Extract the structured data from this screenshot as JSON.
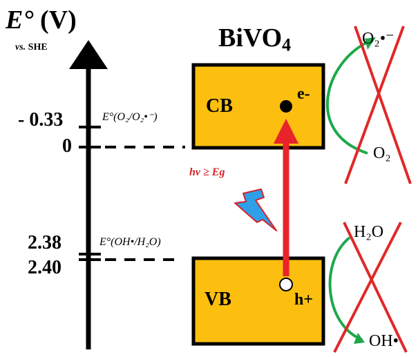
{
  "axis": {
    "title_symbol": "E°",
    "title_unit": "(V)",
    "reference_prefix": "vs.",
    "reference": "SHE"
  },
  "material": {
    "name": "BiVO",
    "subscript": "4"
  },
  "ticks": {
    "o2_potential": "- 0.33",
    "zero": "0",
    "oh_potential_a": "2.38",
    "oh_potential_b": "2.40"
  },
  "couples": {
    "o2_couple": "E°(O₂/O₂•⁻)",
    "oh_couple": "E°(OH•/H₂O)"
  },
  "bands": {
    "conduction": "CB",
    "valence": "VB",
    "electron": "e-",
    "hole": "h+"
  },
  "excitation": {
    "label": "hv ≥ Eg"
  },
  "species": {
    "superoxide": "O₂•⁻",
    "oxygen": "O₂",
    "water": "H₂O",
    "hydroxyl": "OH•"
  },
  "colors": {
    "band_fill": "#fcbf0f",
    "band_border": "#000000",
    "arrow_red": "#e8232a",
    "cross_red": "#e02828",
    "curve_green": "#1ea84b",
    "bolt_blue": "#2ea0e8",
    "bolt_outline": "#d8232a"
  },
  "icons": {
    "photon": "lightning-bolt-icon",
    "forbidden": "cross-icon"
  }
}
